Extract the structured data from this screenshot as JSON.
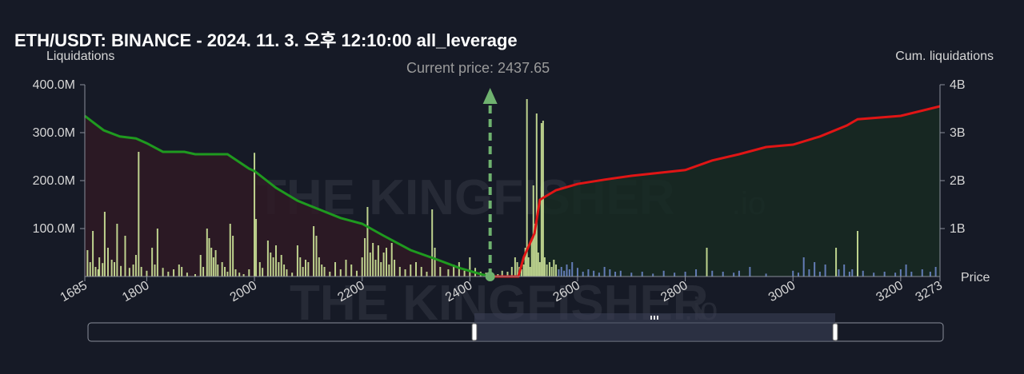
{
  "title": "ETH/USDT: BINANCE - 2024. 11. 3. 오후 12:10:00 all_leverage",
  "left_axis_title": "Liquidations",
  "right_axis_title": "Cum. liquidations",
  "x_axis_title": "Price",
  "current_price_label": "Current price: 2437.65",
  "watermark": "THE KINGFISHER.io",
  "colors": {
    "background": "#161a26",
    "short_cum_line": "#e01515",
    "long_cum_line": "#1f9a1f",
    "short_area": "#182a22",
    "long_area": "#2f1a24",
    "bar_light": "#cfe79a",
    "bar_blue": "#6b86c6",
    "current_price_marker": "#6fb26f"
  },
  "chart_data": {
    "type": "bar",
    "current_price": 2437.65,
    "xlim": [
      1685,
      3273
    ],
    "x_ticks": [
      "1685",
      "1800",
      "2000",
      "2200",
      "2400",
      "2600",
      "2800",
      "3000",
      "3200",
      "3273"
    ],
    "y_left_ticks": [
      "400.0M",
      "300.0M",
      "200.0M",
      "100.0M"
    ],
    "y_left_lim": [
      0,
      400000000
    ],
    "y_right_ticks": [
      "4B",
      "3B",
      "2B",
      "1B"
    ],
    "y_right_lim": [
      0,
      4000000000
    ],
    "series": [
      {
        "name": "",
        "axis": "right",
        "color": "#1f9a1f",
        "points": [
          [
            1685,
            3350000000.0
          ],
          [
            1700,
            3220000000.0
          ],
          [
            1720,
            3050000000.0
          ],
          [
            1750,
            2920000000.0
          ],
          [
            1780,
            2880000000.0
          ],
          [
            1800,
            2780000000.0
          ],
          [
            1830,
            2600000000.0
          ],
          [
            1870,
            2600000000.0
          ],
          [
            1890,
            2550000000.0
          ],
          [
            1950,
            2550000000.0
          ],
          [
            1990,
            2250000000.0
          ],
          [
            2000,
            2200000000.0
          ],
          [
            2040,
            1850000000.0
          ],
          [
            2080,
            1580000000.0
          ],
          [
            2120,
            1400000000.0
          ],
          [
            2160,
            1220000000.0
          ],
          [
            2200,
            1100000000.0
          ],
          [
            2240,
            850000000.0
          ],
          [
            2290,
            550000000.0
          ],
          [
            2340,
            350000000.0
          ],
          [
            2380,
            180000000.0
          ],
          [
            2420,
            50000000.0
          ],
          [
            2437.65,
            0
          ]
        ]
      },
      {
        "name": "",
        "axis": "right",
        "color": "#e01515",
        "points": [
          [
            2437.65,
            0
          ],
          [
            2490,
            0
          ],
          [
            2500,
            400000000.0
          ],
          [
            2520,
            900000000.0
          ],
          [
            2530,
            1600000000.0
          ],
          [
            2560,
            1800000000.0
          ],
          [
            2600,
            1930000000.0
          ],
          [
            2650,
            2020000000.0
          ],
          [
            2700,
            2100000000.0
          ],
          [
            2800,
            2220000000.0
          ],
          [
            2850,
            2420000000.0
          ],
          [
            2900,
            2550000000.0
          ],
          [
            2950,
            2700000000.0
          ],
          [
            3000,
            2750000000.0
          ],
          [
            3050,
            2920000000.0
          ],
          [
            3100,
            3150000000.0
          ],
          [
            3120,
            3280000000.0
          ],
          [
            3200,
            3350000000.0
          ],
          [
            3273,
            3550000000.0
          ]
        ]
      }
    ],
    "bars": [
      [
        1690,
        55000000.0
      ],
      [
        1695,
        30000000.0
      ],
      [
        1700,
        95000000.0
      ],
      [
        1705,
        20000000.0
      ],
      [
        1710,
        15000000.0
      ],
      [
        1712,
        40000000.0
      ],
      [
        1718,
        28000000.0
      ],
      [
        1722,
        135000000.0
      ],
      [
        1728,
        60000000.0
      ],
      [
        1735,
        35000000.0
      ],
      [
        1740,
        30000000.0
      ],
      [
        1745,
        110000000.0
      ],
      [
        1752,
        22000000.0
      ],
      [
        1760,
        85000000.0
      ],
      [
        1768,
        18000000.0
      ],
      [
        1775,
        25000000.0
      ],
      [
        1780,
        45000000.0
      ],
      [
        1785,
        260000000.0
      ],
      [
        1790,
        20000000.0
      ],
      [
        1800,
        12000000.0
      ],
      [
        1810,
        60000000.0
      ],
      [
        1815,
        25000000.0
      ],
      [
        1820,
        100000000.0
      ],
      [
        1830,
        18000000.0
      ],
      [
        1840,
        10000000.0
      ],
      [
        1850,
        15000000.0
      ],
      [
        1860,
        25000000.0
      ],
      [
        1865,
        20000000.0
      ],
      [
        1875,
        8000000.0
      ],
      [
        1890,
        5000000.0
      ],
      [
        1900,
        45000000.0
      ],
      [
        1905,
        20000000.0
      ],
      [
        1912,
        100000000.0
      ],
      [
        1916,
        80000000.0
      ],
      [
        1920,
        60000000.0
      ],
      [
        1924,
        40000000.0
      ],
      [
        1928,
        55000000.0
      ],
      [
        1932,
        25000000.0
      ],
      [
        1940,
        30000000.0
      ],
      [
        1945,
        20000000.0
      ],
      [
        1950,
        10000000.0
      ],
      [
        1955,
        110000000.0
      ],
      [
        1960,
        85000000.0
      ],
      [
        1965,
        15000000.0
      ],
      [
        1972,
        8000000.0
      ],
      [
        1980,
        5000000.0
      ],
      [
        1990,
        15000000.0
      ],
      [
        2000,
        258000000.0
      ],
      [
        2003,
        120000000.0
      ],
      [
        2010,
        30000000.0
      ],
      [
        2015,
        18000000.0
      ],
      [
        2025,
        75000000.0
      ],
      [
        2030,
        50000000.0
      ],
      [
        2035,
        40000000.0
      ],
      [
        2040,
        65000000.0
      ],
      [
        2045,
        30000000.0
      ],
      [
        2050,
        45000000.0
      ],
      [
        2055,
        25000000.0
      ],
      [
        2060,
        15000000.0
      ],
      [
        2070,
        8000000.0
      ],
      [
        2080,
        65000000.0
      ],
      [
        2085,
        40000000.0
      ],
      [
        2090,
        20000000.0
      ],
      [
        2095,
        35000000.0
      ],
      [
        2100,
        30000000.0
      ],
      [
        2110,
        105000000.0
      ],
      [
        2115,
        85000000.0
      ],
      [
        2120,
        40000000.0
      ],
      [
        2125,
        25000000.0
      ],
      [
        2130,
        20000000.0
      ],
      [
        2140,
        10000000.0
      ],
      [
        2150,
        30000000.0
      ],
      [
        2160,
        15000000.0
      ],
      [
        2170,
        35000000.0
      ],
      [
        2180,
        25000000.0
      ],
      [
        2190,
        12000000.0
      ],
      [
        2200,
        40000000.0
      ],
      [
        2205,
        80000000.0
      ],
      [
        2210,
        145000000.0
      ],
      [
        2215,
        50000000.0
      ],
      [
        2220,
        70000000.0
      ],
      [
        2225,
        35000000.0
      ],
      [
        2230,
        65000000.0
      ],
      [
        2235,
        30000000.0
      ],
      [
        2240,
        50000000.0
      ],
      [
        2245,
        60000000.0
      ],
      [
        2250,
        25000000.0
      ],
      [
        2255,
        70000000.0
      ],
      [
        2260,
        35000000.0
      ],
      [
        2270,
        20000000.0
      ],
      [
        2280,
        15000000.0
      ],
      [
        2290,
        25000000.0
      ],
      [
        2300,
        30000000.0
      ],
      [
        2310,
        20000000.0
      ],
      [
        2320,
        10000000.0
      ],
      [
        2330,
        140000000.0
      ],
      [
        2335,
        60000000.0
      ],
      [
        2345,
        20000000.0
      ],
      [
        2360,
        15000000.0
      ],
      [
        2370,
        25000000.0
      ],
      [
        2380,
        30000000.0
      ],
      [
        2390,
        12000000.0
      ],
      [
        2400,
        40000000.0
      ],
      [
        2410,
        18000000.0
      ],
      [
        2420,
        10000000.0
      ],
      [
        2430,
        8000000.0
      ],
      [
        2452,
        5000000.0
      ],
      [
        2460,
        12000000.0
      ],
      [
        2470,
        10000000.0
      ],
      [
        2478,
        20000000.0
      ],
      [
        2484,
        40000000.0
      ],
      [
        2488,
        30000000.0
      ],
      [
        2492,
        20000000.0
      ],
      [
        2496,
        15000000.0
      ],
      [
        2500,
        25000000.0
      ],
      [
        2503,
        60000000.0
      ],
      [
        2506,
        370000000.0
      ],
      [
        2509,
        40000000.0
      ],
      [
        2512,
        20000000.0
      ],
      [
        2515,
        80000000.0
      ],
      [
        2518,
        190000000.0
      ],
      [
        2521,
        110000000.0
      ],
      [
        2524,
        340000000.0
      ],
      [
        2527,
        50000000.0
      ],
      [
        2530,
        30000000.0
      ],
      [
        2533,
        320000000.0
      ],
      [
        2536,
        325000000.0
      ],
      [
        2539,
        40000000.0
      ],
      [
        2543,
        25000000.0
      ],
      [
        2548,
        30000000.0
      ],
      [
        2552,
        20000000.0
      ],
      [
        2556,
        35000000.0
      ],
      [
        2560,
        25000000.0
      ],
      [
        2565,
        15000000.0
      ],
      [
        2570,
        20000000.0
      ],
      [
        2575,
        12000000.0
      ],
      [
        2580,
        25000000.0
      ],
      [
        2585,
        15000000.0
      ],
      [
        2590,
        30000000.0
      ],
      [
        2600,
        18000000.0
      ],
      [
        2610,
        10000000.0
      ],
      [
        2620,
        15000000.0
      ],
      [
        2630,
        12000000.0
      ],
      [
        2640,
        8000000.0
      ],
      [
        2650,
        20000000.0
      ],
      [
        2660,
        15000000.0
      ],
      [
        2670,
        10000000.0
      ],
      [
        2680,
        12000000.0
      ],
      [
        2700,
        8000000.0
      ],
      [
        2720,
        10000000.0
      ],
      [
        2740,
        6000000.0
      ],
      [
        2760,
        12000000.0
      ],
      [
        2780,
        8000000.0
      ],
      [
        2800,
        10000000.0
      ],
      [
        2820,
        15000000.0
      ],
      [
        2840,
        60000000.0
      ],
      [
        2850,
        12000000.0
      ],
      [
        2870,
        10000000.0
      ],
      [
        2890,
        8000000.0
      ],
      [
        2900,
        12000000.0
      ],
      [
        2920,
        20000000.0
      ],
      [
        2950,
        6000000.0
      ],
      [
        3000,
        12000000.0
      ],
      [
        3010,
        8000000.0
      ],
      [
        3020,
        40000000.0
      ],
      [
        3030,
        15000000.0
      ],
      [
        3040,
        30000000.0
      ],
      [
        3050,
        10000000.0
      ],
      [
        3060,
        25000000.0
      ],
      [
        3080,
        60000000.0
      ],
      [
        3085,
        15000000.0
      ],
      [
        3095,
        25000000.0
      ],
      [
        3105,
        10000000.0
      ],
      [
        3110,
        15000000.0
      ],
      [
        3120,
        95000000.0
      ],
      [
        3130,
        12000000.0
      ],
      [
        3150,
        8000000.0
      ],
      [
        3170,
        10000000.0
      ],
      [
        3190,
        8000000.0
      ],
      [
        3200,
        15000000.0
      ],
      [
        3210,
        25000000.0
      ],
      [
        3220,
        10000000.0
      ],
      [
        3240,
        15000000.0
      ],
      [
        3255,
        10000000.0
      ],
      [
        3265,
        20000000.0
      ]
    ]
  }
}
